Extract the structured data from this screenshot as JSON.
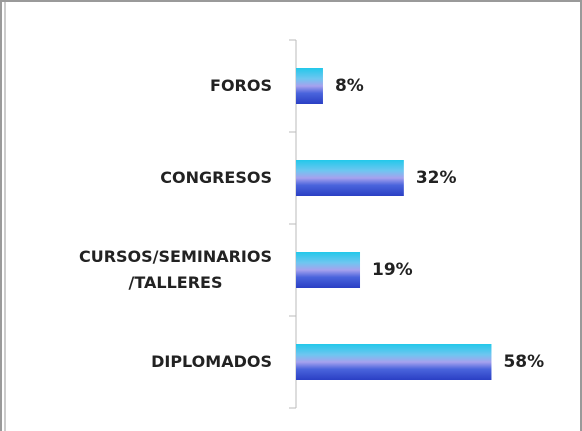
{
  "chart_data": {
    "type": "bar",
    "orientation": "horizontal",
    "categories": [
      "FOROS",
      "CONGRESOS",
      "CURSOS/SEMINARIOS\n/TALLERES",
      "DIPLOMADOS"
    ],
    "values": [
      8,
      32,
      19,
      58
    ],
    "value_labels": [
      "8%",
      "32%",
      "19%",
      "58%"
    ]
  }
}
